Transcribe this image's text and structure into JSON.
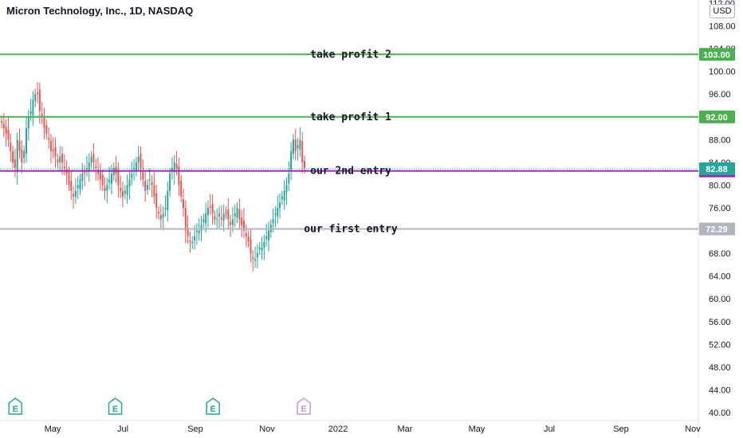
{
  "chart_data": {
    "type": "candlestick",
    "title": "Micron Technology, Inc., 1D, NASDAQ",
    "currency": "USD",
    "ylim": [
      40,
      112
    ],
    "yticks": [
      112,
      108,
      104,
      100,
      96,
      92,
      88,
      84,
      80,
      76,
      72,
      68,
      64,
      60,
      56,
      52,
      48,
      44,
      40
    ],
    "xticks": [
      "May",
      "Jul",
      "Sep",
      "Nov",
      "2022",
      "Mar",
      "May",
      "Jul",
      "Sep",
      "Nov"
    ],
    "series_close": [
      91,
      90,
      89,
      88,
      86,
      84,
      83,
      88,
      86,
      84,
      86,
      90,
      92,
      93,
      95,
      96,
      96,
      93,
      92,
      90,
      89,
      88,
      86,
      86,
      85,
      84,
      85,
      84,
      83,
      82,
      80,
      79,
      78,
      79,
      80,
      81,
      82,
      82,
      83,
      84,
      85,
      84,
      83,
      82,
      81,
      80,
      79,
      80,
      81,
      82,
      83,
      82,
      80,
      79,
      78,
      79,
      80,
      81,
      82,
      83,
      84,
      85,
      83,
      81,
      79,
      80,
      81,
      80,
      78,
      76,
      75,
      74,
      75,
      76,
      79,
      82,
      83,
      84,
      83,
      80,
      78,
      76,
      72,
      71,
      70,
      70,
      71,
      72,
      72,
      73,
      74,
      75,
      76,
      76,
      75,
      74,
      74,
      75,
      74,
      75,
      75,
      74,
      73,
      74,
      75,
      76,
      74,
      73,
      72,
      71,
      70,
      68,
      67,
      67,
      68,
      69,
      69,
      70,
      71,
      72,
      73,
      74,
      75,
      76,
      77,
      78,
      79,
      80,
      82,
      86,
      88,
      86,
      87,
      88,
      84,
      83
    ],
    "horizontal_lines": [
      {
        "label": "take profit 2",
        "value": 103.0,
        "badge": "103.00",
        "color": "#4caf50"
      },
      {
        "label": "take profit 1",
        "value": 92.0,
        "badge": "92.00",
        "color": "#4caf50"
      },
      {
        "label": "our 2nd entry",
        "value": 82.5,
        "badge": "82.50",
        "color": "#9c27b0"
      },
      {
        "label": "our first entry",
        "value": 72.29,
        "badge": "72.29",
        "color": "#b2b5be"
      }
    ],
    "last_price": {
      "value": 82.88,
      "badge": "82.88",
      "color": "#26a69a"
    },
    "earnings_markers": [
      {
        "x_frac": 0.022,
        "label": "E",
        "past": true
      },
      {
        "x_frac": 0.165,
        "label": "E",
        "past": true
      },
      {
        "x_frac": 0.305,
        "label": "E",
        "past": true
      },
      {
        "x_frac": 0.435,
        "label": "E",
        "past": false
      }
    ]
  }
}
